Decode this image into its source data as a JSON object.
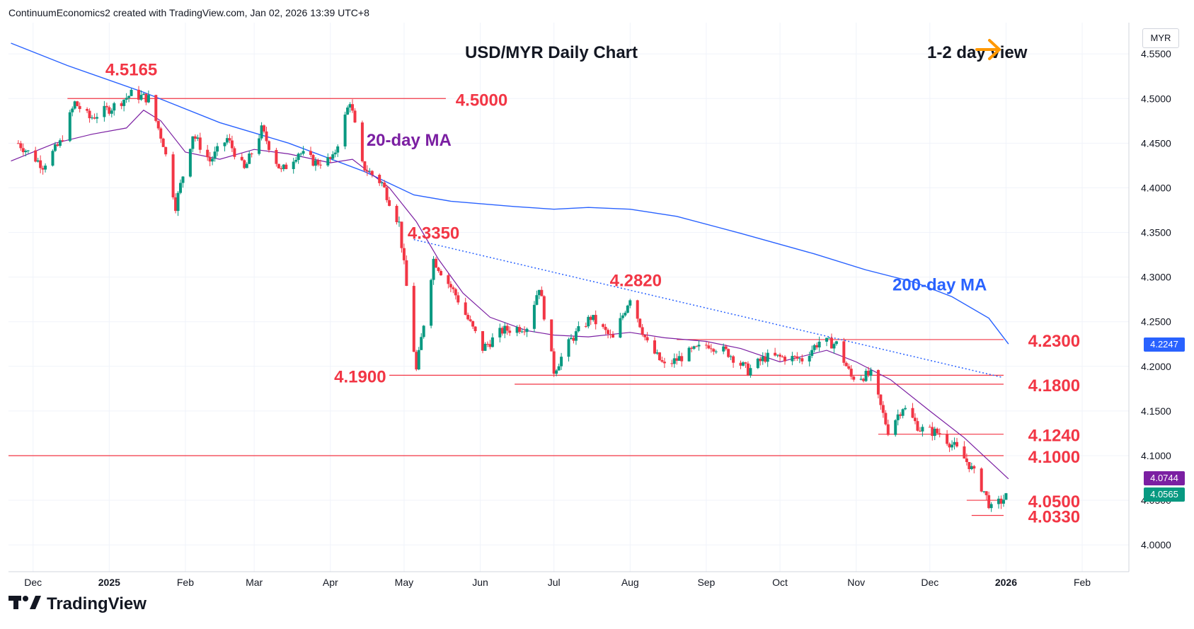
{
  "header": {
    "text": "ContinuumEconomics2 created with TradingView.com, Jan 02, 2026 13:39 UTC+8"
  },
  "symbol_box": "MYR",
  "footer": {
    "brand": "TradingView"
  },
  "colors": {
    "up": "#089981",
    "down": "#f23645",
    "level": "#f23645",
    "ma20": "#7b1fa2",
    "ma200": "#2962ff",
    "trend": "#2962ff",
    "view_arrow": "#ff9800",
    "badge_ma200": "#2962ff",
    "badge_ma20": "#7b1fa2",
    "badge_last": "#089981"
  },
  "badges": {
    "ma200": "4.2247",
    "ma20": "4.0744",
    "last": "4.0565"
  },
  "chart_data": {
    "type": "candlestick",
    "title": "USD/MYR Daily Chart",
    "view_label": "1-2 day view",
    "y_axis": {
      "ticks": [
        "4.5500",
        "4.5000",
        "4.4500",
        "4.4000",
        "4.3500",
        "4.3000",
        "4.2500",
        "4.2000",
        "4.1500",
        "4.1000",
        "4.0500",
        "4.0000"
      ],
      "range": [
        3.97,
        4.585
      ]
    },
    "x_axis": {
      "ticks": [
        "Dec",
        "2025",
        "Feb",
        "Mar",
        "Apr",
        "May",
        "Jun",
        "Jul",
        "Aug",
        "Sep",
        "Oct",
        "Nov",
        "Dec",
        "2026",
        "Feb"
      ]
    },
    "levels": [
      {
        "label": "4.5000",
        "value": 4.5
      },
      {
        "label": "4.2300",
        "value": 4.23
      },
      {
        "label": "4.1900",
        "value": 4.19
      },
      {
        "label": "4.1800",
        "value": 4.18
      },
      {
        "label": "4.1240",
        "value": 4.124
      },
      {
        "label": "4.1000",
        "value": 4.1
      },
      {
        "label": "4.0500",
        "value": 4.05
      },
      {
        "label": "4.0330",
        "value": 4.033
      }
    ],
    "annotations": [
      {
        "label": "4.5165",
        "value": 4.5165,
        "date": "2025-01-10"
      },
      {
        "label": "4.3350",
        "value": 4.335,
        "date": "2025-05-13"
      },
      {
        "label": "4.2820",
        "value": 4.282,
        "date": "2025-08-01"
      },
      {
        "label": "20-day MA"
      },
      {
        "label": "200-day MA"
      }
    ],
    "ma200": [
      [
        "2024-11-22",
        4.562
      ],
      [
        "2024-12-15",
        4.537
      ],
      [
        "2025-01-15",
        4.507
      ],
      [
        "2025-02-15",
        4.473
      ],
      [
        "2025-03-15",
        4.45
      ],
      [
        "2025-04-15",
        4.418
      ],
      [
        "2025-05-05",
        4.392
      ],
      [
        "2025-05-20",
        4.385
      ],
      [
        "2025-06-15",
        4.379
      ],
      [
        "2025-07-01",
        4.376
      ],
      [
        "2025-07-15",
        4.378
      ],
      [
        "2025-08-01",
        4.376
      ],
      [
        "2025-08-20",
        4.368
      ],
      [
        "2025-09-15",
        4.349
      ],
      [
        "2025-10-15",
        4.326
      ],
      [
        "2025-11-05",
        4.308
      ],
      [
        "2025-11-25",
        4.294
      ],
      [
        "2025-12-10",
        4.278
      ],
      [
        "2025-12-25",
        4.254
      ],
      [
        "2026-01-02",
        4.225
      ]
    ],
    "ma20": [
      [
        "2024-11-22",
        4.43
      ],
      [
        "2024-12-10",
        4.45
      ],
      [
        "2024-12-25",
        4.46
      ],
      [
        "2025-01-08",
        4.467
      ],
      [
        "2025-01-15",
        4.487
      ],
      [
        "2025-01-22",
        4.475
      ],
      [
        "2025-02-01",
        4.44
      ],
      [
        "2025-02-15",
        4.432
      ],
      [
        "2025-03-01",
        4.443
      ],
      [
        "2025-03-15",
        4.438
      ],
      [
        "2025-04-01",
        4.428
      ],
      [
        "2025-04-10",
        4.432
      ],
      [
        "2025-04-25",
        4.4
      ],
      [
        "2025-05-06",
        4.362
      ],
      [
        "2025-05-15",
        4.32
      ],
      [
        "2025-05-25",
        4.282
      ],
      [
        "2025-06-05",
        4.255
      ],
      [
        "2025-06-20",
        4.24
      ],
      [
        "2025-07-01",
        4.235
      ],
      [
        "2025-07-15",
        4.233
      ],
      [
        "2025-08-01",
        4.238
      ],
      [
        "2025-08-15",
        4.232
      ],
      [
        "2025-09-01",
        4.228
      ],
      [
        "2025-09-15",
        4.22
      ],
      [
        "2025-10-01",
        4.205
      ],
      [
        "2025-10-20",
        4.218
      ],
      [
        "2025-11-01",
        4.205
      ],
      [
        "2025-11-15",
        4.185
      ],
      [
        "2025-12-01",
        4.15
      ],
      [
        "2025-12-15",
        4.12
      ],
      [
        "2026-01-02",
        4.074
      ]
    ],
    "trendline": [
      [
        "2025-05-05",
        4.342
      ],
      [
        "2025-12-30",
        4.188
      ]
    ],
    "ohlc_anchors": [
      [
        "2024-11-25",
        4.45
      ],
      [
        "2024-12-05",
        4.425
      ],
      [
        "2024-12-12",
        4.45
      ],
      [
        "2024-12-18",
        4.495
      ],
      [
        "2024-12-24",
        4.478
      ],
      [
        "2025-01-02",
        4.49
      ],
      [
        "2025-01-10",
        4.505
      ],
      [
        "2025-01-17",
        4.5
      ],
      [
        "2025-01-23",
        4.45
      ],
      [
        "2025-01-28",
        4.38
      ],
      [
        "2025-02-04",
        4.46
      ],
      [
        "2025-02-11",
        4.43
      ],
      [
        "2025-02-18",
        4.455
      ],
      [
        "2025-02-25",
        4.42
      ],
      [
        "2025-03-04",
        4.465
      ],
      [
        "2025-03-12",
        4.418
      ],
      [
        "2025-03-19",
        4.44
      ],
      [
        "2025-03-26",
        4.428
      ],
      [
        "2025-04-02",
        4.432
      ],
      [
        "2025-04-09",
        4.498
      ],
      [
        "2025-04-14",
        4.425
      ],
      [
        "2025-04-22",
        4.405
      ],
      [
        "2025-04-29",
        4.36
      ],
      [
        "2025-05-06",
        4.195
      ],
      [
        "2025-05-13",
        4.32
      ],
      [
        "2025-05-22",
        4.28
      ],
      [
        "2025-06-02",
        4.22
      ],
      [
        "2025-06-10",
        4.24
      ],
      [
        "2025-06-20",
        4.245
      ],
      [
        "2025-06-25",
        4.29
      ],
      [
        "2025-07-01",
        4.195
      ],
      [
        "2025-07-08",
        4.23
      ],
      [
        "2025-07-16",
        4.255
      ],
      [
        "2025-07-25",
        4.23
      ],
      [
        "2025-08-01",
        4.278
      ],
      [
        "2025-08-08",
        4.225
      ],
      [
        "2025-08-15",
        4.2
      ],
      [
        "2025-08-25",
        4.215
      ],
      [
        "2025-09-02",
        4.225
      ],
      [
        "2025-09-10",
        4.215
      ],
      [
        "2025-09-18",
        4.195
      ],
      [
        "2025-09-25",
        4.21
      ],
      [
        "2025-10-03",
        4.21
      ],
      [
        "2025-10-10",
        4.208
      ],
      [
        "2025-10-17",
        4.228
      ],
      [
        "2025-10-24",
        4.225
      ],
      [
        "2025-10-30",
        4.188
      ],
      [
        "2025-11-07",
        4.19
      ],
      [
        "2025-11-14",
        4.128
      ],
      [
        "2025-11-20",
        4.155
      ],
      [
        "2025-11-27",
        4.13
      ],
      [
        "2025-12-05",
        4.125
      ],
      [
        "2025-12-11",
        4.11
      ],
      [
        "2025-12-17",
        4.09
      ],
      [
        "2025-12-23",
        4.06
      ],
      [
        "2025-12-26",
        4.04
      ],
      [
        "2026-01-02",
        4.056
      ]
    ]
  }
}
